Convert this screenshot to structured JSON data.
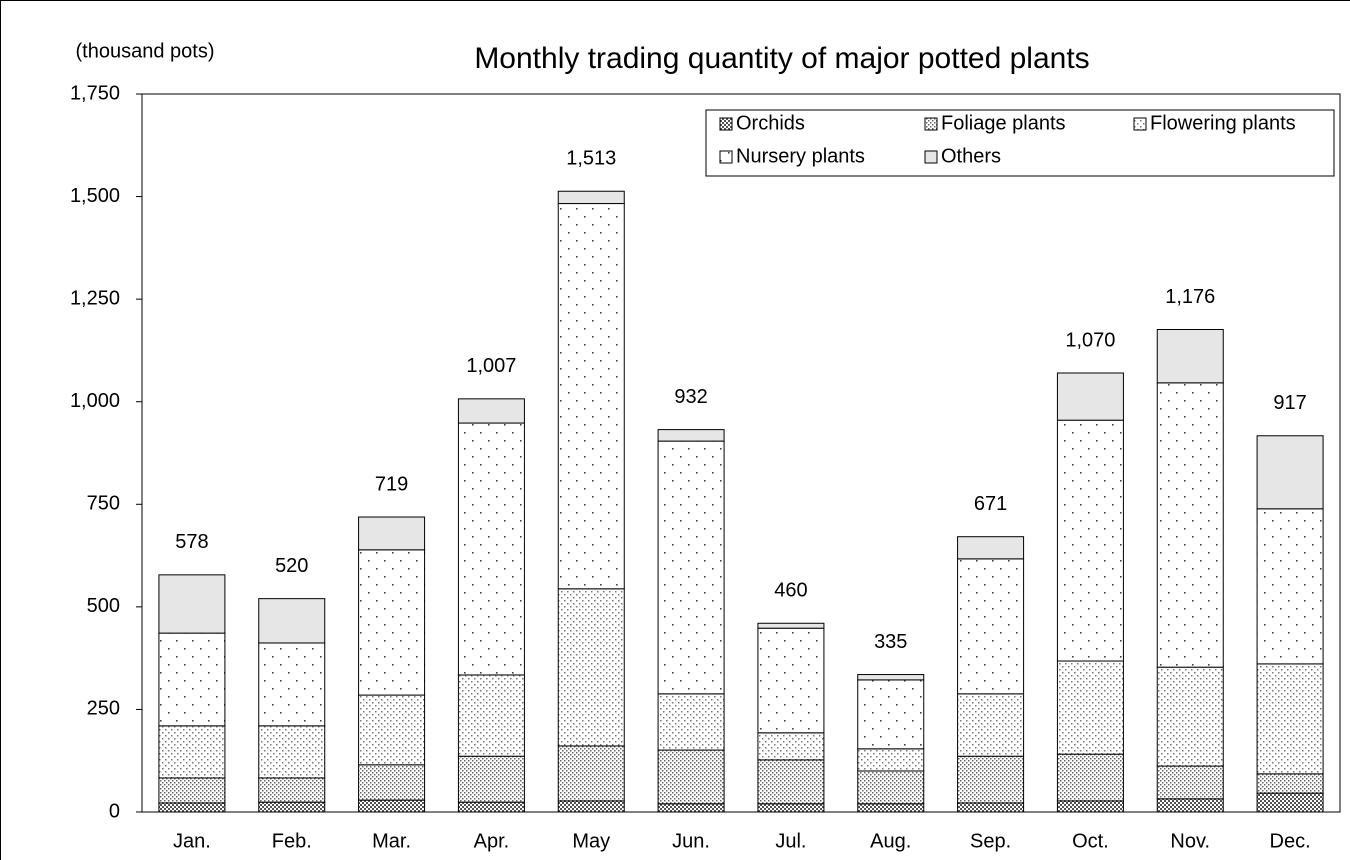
{
  "chart_data": {
    "type": "stacked-bar",
    "title": "Monthly trading quantity of major potted plants",
    "y_label": "(thousand pots)",
    "categories": [
      "Jan.",
      "Feb.",
      "Mar.",
      "Apr.",
      "May",
      "Jun.",
      "Jul.",
      "Aug.",
      "Sep.",
      "Oct.",
      "Nov.",
      "Dec."
    ],
    "series": [
      {
        "name": "Orchids",
        "color": "#555555",
        "values": [
          22,
          24,
          29,
          24,
          27,
          20,
          20,
          20,
          22,
          27,
          32,
          46
        ]
      },
      {
        "name": "Foliage plants",
        "color": "#666666",
        "values": [
          61,
          59,
          86,
          112,
          134,
          131,
          107,
          80,
          114,
          114,
          80,
          47
        ]
      },
      {
        "name": "Flowering plants",
        "color": "#777777",
        "values": [
          127,
          127,
          170,
          198,
          383,
          137,
          66,
          54,
          152,
          227,
          241,
          268
        ]
      },
      {
        "name": "Nursery plants",
        "color": "#444444",
        "values": [
          226,
          202,
          354,
          614,
          939,
          616,
          255,
          168,
          329,
          587,
          693,
          378
        ]
      },
      {
        "name": "Others",
        "color": "#e6e6e6",
        "values": [
          142,
          108,
          80,
          59,
          30,
          28,
          12,
          13,
          54,
          115,
          130,
          178
        ]
      }
    ],
    "totals": {
      "values": [
        578,
        520,
        719,
        1007,
        1513,
        932,
        460,
        335,
        671,
        1070,
        1176,
        917
      ],
      "value_labels": [
        "578",
        "520",
        "719",
        "1,007",
        "1,513",
        "932",
        "460",
        "335",
        "671",
        "1,070",
        "1,176",
        "917"
      ]
    },
    "ylim": [
      0,
      1750
    ],
    "yticks": [
      0,
      250,
      500,
      750,
      {
        "value": 1000,
        "label": "1,000"
      },
      {
        "value": 1250,
        "label": "1,250"
      },
      {
        "value": 1500,
        "label": "1,500"
      },
      {
        "value": 1750,
        "label": "1,750"
      }
    ],
    "grid": false,
    "legend": "top-right"
  }
}
